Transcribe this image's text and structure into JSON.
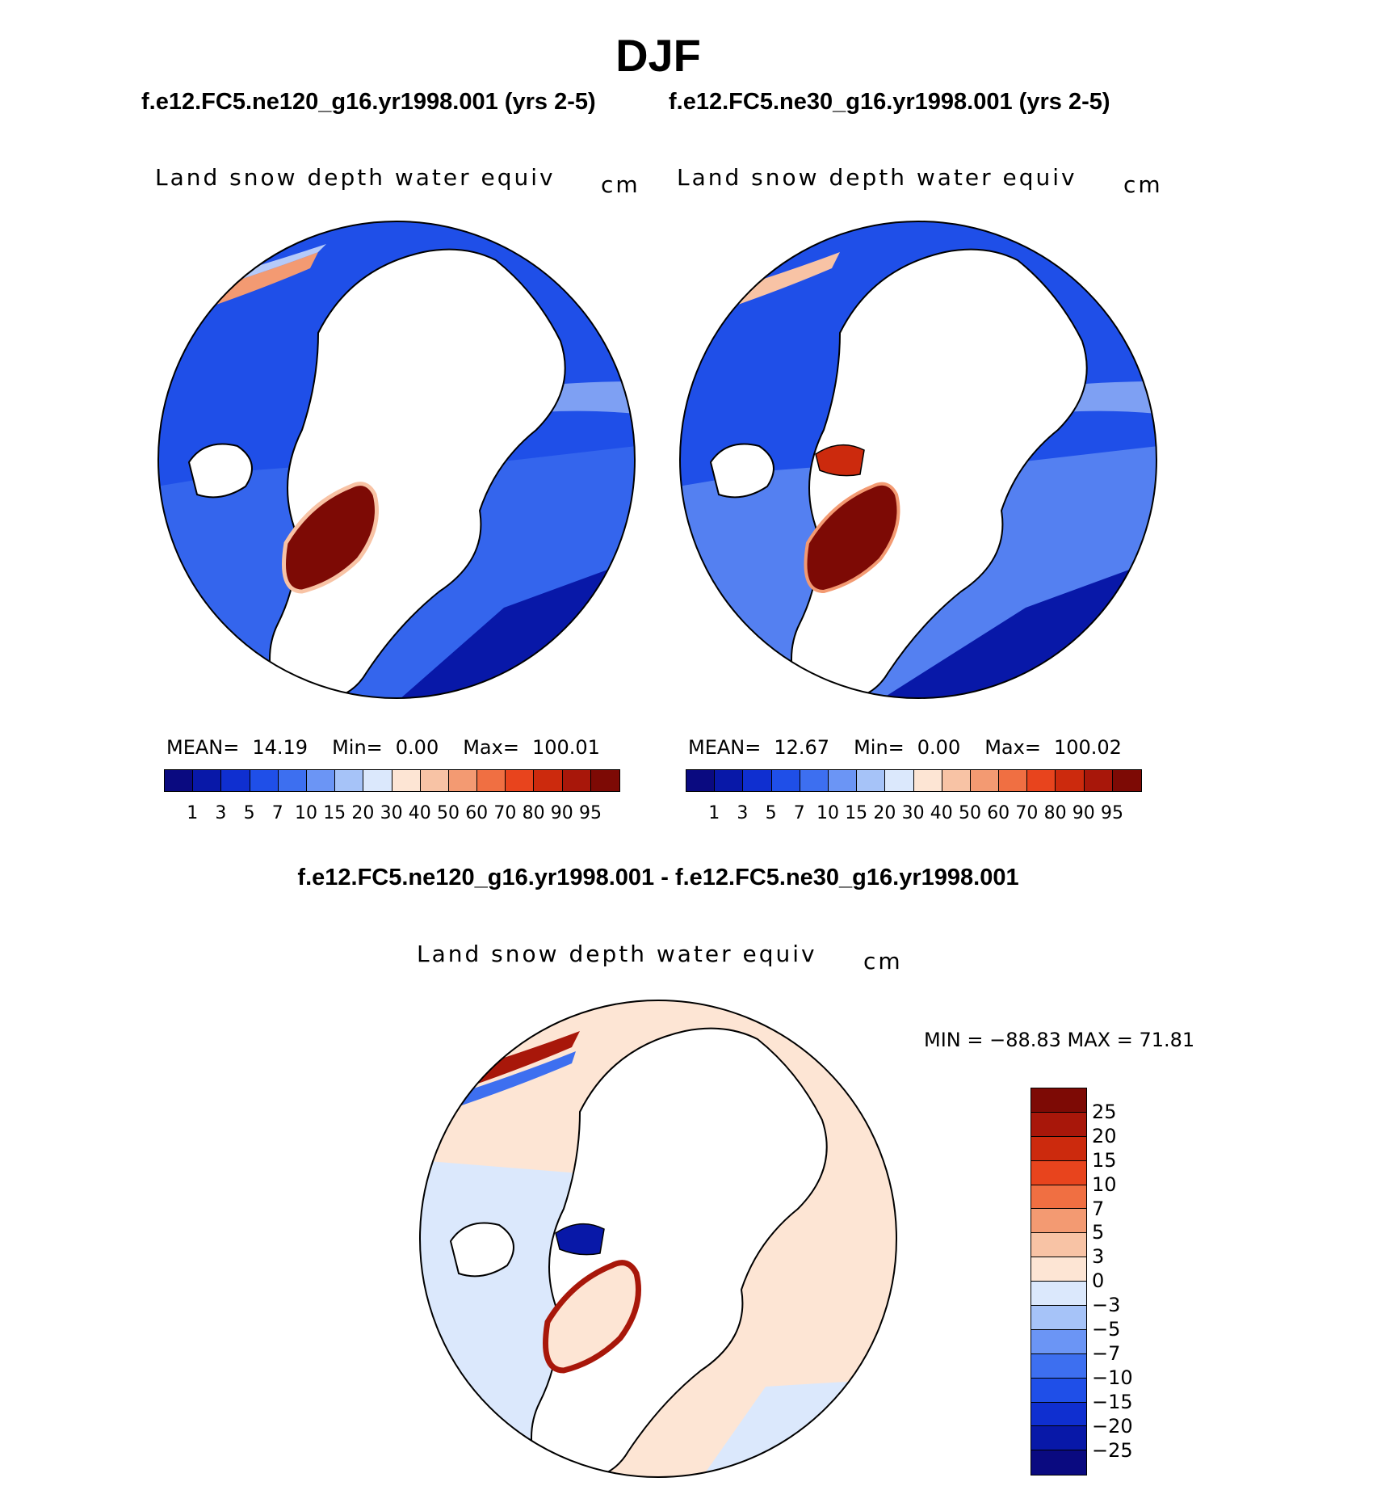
{
  "figure": {
    "season": "DJF",
    "case_left": "f.e12.FC5.ne120_g16.yr1998.001 (yrs 2-5)",
    "case_right": "f.e12.FC5.ne30_g16.yr1998.001 (yrs 2-5)",
    "diff_title": "f.e12.FC5.ne120_g16.yr1998.001 - f.e12.FC5.ne30_g16.yr1998.001"
  },
  "panels": [
    {
      "variable": "Land snow depth water equiv",
      "units": "cm",
      "mean_label": "MEAN=",
      "mean": "14.19",
      "min_label": "Min=",
      "min": "0.00",
      "max_label": "Max=",
      "max": "100.01"
    },
    {
      "variable": "Land snow depth water equiv",
      "units": "cm",
      "mean_label": "MEAN=",
      "mean": "12.67",
      "min_label": "Min=",
      "min": "0.00",
      "max_label": "Max=",
      "max": "100.02"
    }
  ],
  "diff_panel": {
    "variable": "Land snow depth water equiv",
    "units": "cm",
    "minmax_text": "MIN = −88.83 MAX =   71.81"
  },
  "legend_main": {
    "labels": [
      "1",
      "3",
      "5",
      "7",
      "10",
      "15",
      "20",
      "30",
      "40",
      "50",
      "60",
      "70",
      "80",
      "90",
      "95"
    ],
    "colors": [
      "#0a0a80",
      "#0818a8",
      "#0f2fd0",
      "#1f4fe8",
      "#3d6ff0",
      "#6b95f5",
      "#a6c3f8",
      "#dbe8fc",
      "#fde5d4",
      "#f8c3a5",
      "#f39a72",
      "#f06f42",
      "#e8441d",
      "#cc2a0d",
      "#a8170a",
      "#7d0a05"
    ]
  },
  "legend_diff": {
    "labels": [
      "25",
      "20",
      "15",
      "10",
      "7",
      "5",
      "3",
      "0",
      "−3",
      "−5",
      "−7",
      "−10",
      "−15",
      "−20",
      "−25"
    ],
    "colors": [
      "#7d0a05",
      "#a8170a",
      "#cc2a0d",
      "#e8441d",
      "#f06f42",
      "#f39a72",
      "#f8c3a5",
      "#fde5d4",
      "#dbe8fc",
      "#a6c3f8",
      "#6b95f5",
      "#3d6ff0",
      "#1f4fe8",
      "#0f2fd0",
      "#0818a8",
      "#0a0a80"
    ]
  }
}
